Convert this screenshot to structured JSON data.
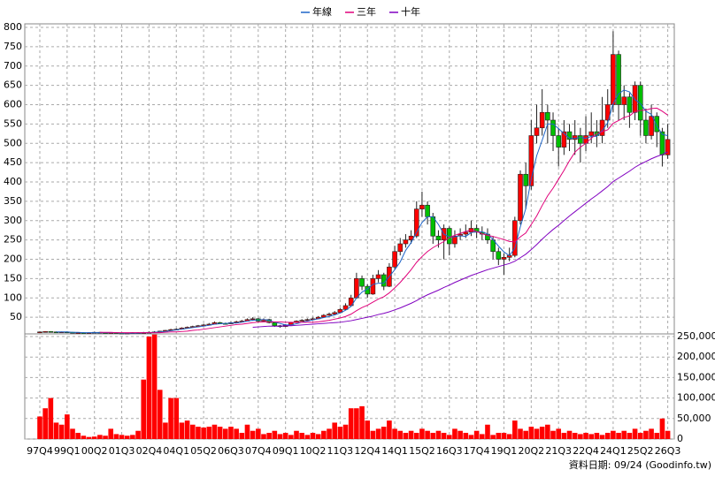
{
  "footer": "資料日期: 09/24 (Goodinfo.tw)",
  "chart_data": [
    {
      "type": "candlestick",
      "categories": [
        "97Q4",
        null,
        null,
        null,
        null,
        "99Q1",
        null,
        null,
        null,
        null,
        "00Q2",
        null,
        null,
        null,
        null,
        "01Q3",
        null,
        null,
        null,
        null,
        "02Q4",
        null,
        null,
        null,
        null,
        "04Q1",
        null,
        null,
        null,
        null,
        "05Q2",
        null,
        null,
        null,
        null,
        "06Q3",
        null,
        null,
        null,
        null,
        "07Q4",
        null,
        null,
        null,
        null,
        "09Q1",
        null,
        null,
        null,
        null,
        "10Q2",
        null,
        null,
        null,
        null,
        "11Q3",
        null,
        null,
        null,
        null,
        "12Q4",
        null,
        null,
        null,
        null,
        "14Q1",
        null,
        null,
        null,
        null,
        "15Q2",
        null,
        null,
        null,
        null,
        "16Q3",
        null,
        null,
        null,
        null,
        "17Q4",
        null,
        null,
        null,
        null,
        "19Q1",
        null,
        null,
        null,
        null,
        "20Q2",
        null,
        null,
        null,
        null,
        "21Q3",
        null,
        null,
        null,
        null,
        "22Q4",
        null,
        null,
        null,
        null,
        "24Q1",
        null,
        null,
        null,
        null,
        "25Q2",
        null,
        null,
        null,
        null,
        "26Q3"
      ],
      "open": [
        12,
        12,
        13,
        12,
        11,
        12,
        11,
        10,
        10,
        9,
        10,
        11,
        10,
        9,
        10,
        9,
        8,
        9,
        10,
        9,
        10,
        11,
        12,
        14,
        16,
        18,
        19,
        22,
        24,
        26,
        28,
        30,
        32,
        36,
        34,
        33,
        36,
        38,
        40,
        44,
        46,
        40,
        44,
        36,
        28,
        26,
        30,
        36,
        40,
        42,
        44,
        46,
        50,
        55,
        58,
        62,
        70,
        80,
        100,
        150,
        130,
        110,
        150,
        160,
        130,
        180,
        220,
        240,
        250,
        260,
        330,
        340,
        310,
        260,
        250,
        280,
        240,
        260,
        265,
        270,
        280,
        270,
        265,
        250,
        220,
        200,
        205,
        210,
        300,
        420,
        390,
        520,
        540,
        580,
        560,
        520,
        490,
        530,
        510,
        520,
        500,
        520,
        530,
        520,
        560,
        600,
        730,
        600,
        620,
        580,
        650,
        560,
        520,
        570,
        530,
        470
      ],
      "high": [
        13,
        14,
        14,
        13,
        13,
        13,
        12,
        11,
        11,
        11,
        12,
        12,
        11,
        11,
        11,
        10,
        10,
        11,
        11,
        12,
        13,
        14,
        15,
        17,
        20,
        21,
        24,
        26,
        28,
        30,
        33,
        35,
        39,
        38,
        36,
        38,
        41,
        43,
        47,
        50,
        48,
        47,
        46,
        38,
        30,
        32,
        38,
        42,
        45,
        47,
        49,
        53,
        58,
        62,
        66,
        74,
        86,
        108,
        165,
        158,
        135,
        160,
        172,
        165,
        190,
        235,
        255,
        265,
        275,
        350,
        375,
        350,
        320,
        275,
        290,
        285,
        275,
        280,
        290,
        300,
        290,
        285,
        280,
        260,
        230,
        215,
        230,
        310,
        430,
        450,
        560,
        600,
        640,
        600,
        580,
        540,
        560,
        550,
        560,
        540,
        570,
        580,
        560,
        620,
        640,
        790,
        740,
        650,
        630,
        660,
        660,
        590,
        600,
        580,
        540,
        550
      ],
      "low": [
        11,
        11,
        11,
        10,
        10,
        10,
        9,
        9,
        8,
        8,
        9,
        9,
        8,
        8,
        8,
        7,
        7,
        8,
        8,
        8,
        9,
        10,
        11,
        13,
        15,
        17,
        18,
        21,
        23,
        25,
        27,
        29,
        31,
        32,
        31,
        32,
        35,
        37,
        39,
        42,
        38,
        38,
        34,
        25,
        23,
        25,
        29,
        35,
        39,
        41,
        42,
        45,
        49,
        54,
        56,
        60,
        68,
        78,
        98,
        120,
        100,
        108,
        140,
        120,
        128,
        175,
        210,
        230,
        240,
        255,
        310,
        290,
        240,
        230,
        200,
        210,
        230,
        250,
        255,
        260,
        255,
        250,
        240,
        200,
        185,
        160,
        195,
        205,
        290,
        330,
        380,
        500,
        520,
        500,
        480,
        440,
        470,
        480,
        470,
        450,
        480,
        500,
        490,
        500,
        540,
        580,
        560,
        560,
        540,
        560,
        520,
        500,
        510,
        490,
        440,
        460
      ],
      "close": [
        12,
        13,
        12,
        11,
        12,
        11,
        10,
        10,
        9,
        10,
        11,
        10,
        9,
        10,
        9,
        8,
        9,
        10,
        9,
        10,
        11,
        12,
        14,
        16,
        18,
        19,
        22,
        24,
        26,
        28,
        30,
        32,
        36,
        34,
        33,
        36,
        38,
        40,
        44,
        46,
        40,
        44,
        36,
        28,
        26,
        30,
        36,
        40,
        42,
        44,
        46,
        50,
        55,
        58,
        62,
        70,
        80,
        100,
        150,
        130,
        110,
        150,
        160,
        130,
        180,
        220,
        240,
        250,
        260,
        330,
        340,
        310,
        260,
        250,
        280,
        240,
        260,
        265,
        270,
        280,
        270,
        265,
        250,
        220,
        200,
        205,
        210,
        300,
        420,
        390,
        520,
        540,
        580,
        560,
        520,
        490,
        530,
        510,
        520,
        500,
        520,
        530,
        520,
        560,
        600,
        730,
        600,
        620,
        580,
        650,
        560,
        520,
        570,
        530,
        470,
        510
      ],
      "up_color": "#ff0000",
      "down_color": "#00c000",
      "series": [
        {
          "name": "年線",
          "color": "#1e64c8",
          "values": [
            null,
            null,
            null,
            12,
            12,
            12,
            11,
            11,
            10,
            10,
            10,
            10,
            10,
            10,
            10,
            9,
            9,
            9,
            9,
            10,
            10,
            11,
            12,
            13,
            15,
            17,
            19,
            21,
            23,
            25,
            27,
            29,
            32,
            33,
            34,
            35,
            35,
            37,
            40,
            42,
            43,
            44,
            42,
            37,
            34,
            30,
            30,
            33,
            37,
            40,
            43,
            46,
            49,
            52,
            56,
            61,
            68,
            78,
            100,
            115,
            123,
            135,
            138,
            138,
            155,
            173,
            193,
            223,
            243,
            270,
            295,
            310,
            310,
            290,
            265,
            258,
            258,
            261,
            259,
            269,
            271,
            271,
            266,
            251,
            234,
            219,
            209,
            229,
            284,
            331,
            408,
            468,
            508,
            550,
            550,
            538,
            525,
            513,
            513,
            515,
            513,
            518,
            518,
            533,
            553,
            603,
            628,
            638,
            633,
            613,
            603,
            583,
            575,
            545,
            523,
            520
          ]
        },
        {
          "name": "三年",
          "color": "#e0007a",
          "values": [
            null,
            null,
            null,
            null,
            null,
            null,
            null,
            null,
            null,
            null,
            null,
            11,
            11,
            11,
            10,
            10,
            10,
            10,
            10,
            10,
            10,
            10,
            10,
            11,
            12,
            12,
            13,
            14,
            16,
            17,
            19,
            21,
            23,
            25,
            27,
            29,
            31,
            32,
            34,
            36,
            37,
            38,
            38,
            38,
            38,
            37,
            37,
            37,
            37,
            37,
            37,
            38,
            40,
            42,
            45,
            48,
            52,
            58,
            67,
            75,
            81,
            89,
            97,
            103,
            113,
            126,
            140,
            156,
            173,
            192,
            207,
            220,
            230,
            238,
            246,
            256,
            262,
            267,
            272,
            275,
            272,
            266,
            262,
            259,
            255,
            251,
            246,
            245,
            258,
            268,
            290,
            312,
            339,
            364,
            384,
            407,
            430,
            455,
            477,
            490,
            500,
            513,
            525,
            530,
            535,
            552,
            559,
            567,
            571,
            582,
            585,
            586,
            590,
            591,
            583,
            573
          ]
        },
        {
          "name": "十年",
          "color": "#8000c0",
          "values": [
            null,
            null,
            null,
            null,
            null,
            null,
            null,
            null,
            null,
            null,
            null,
            null,
            null,
            null,
            null,
            null,
            null,
            null,
            null,
            null,
            null,
            null,
            null,
            null,
            null,
            null,
            null,
            null,
            null,
            null,
            null,
            null,
            null,
            null,
            null,
            null,
            null,
            null,
            null,
            24,
            25,
            26,
            27,
            27,
            27,
            28,
            28,
            29,
            30,
            31,
            32,
            33,
            34,
            35,
            36,
            37,
            39,
            41,
            44,
            47,
            50,
            53,
            57,
            60,
            64,
            69,
            74,
            80,
            86,
            93,
            101,
            108,
            114,
            120,
            127,
            133,
            140,
            146,
            152,
            158,
            163,
            168,
            173,
            177,
            181,
            185,
            189,
            195,
            204,
            213,
            225,
            238,
            252,
            265,
            277,
            288,
            300,
            312,
            323,
            334,
            345,
            356,
            366,
            377,
            388,
            401,
            410,
            419,
            428,
            438,
            446,
            453,
            460,
            466,
            471,
            478
          ]
        }
      ],
      "ylim": [
        0,
        800
      ],
      "yticks": [
        50,
        100,
        150,
        200,
        250,
        300,
        350,
        400,
        450,
        500,
        550,
        600,
        650,
        700,
        750,
        800
      ],
      "grid": true
    },
    {
      "type": "bar",
      "color": "#ff0000",
      "values": [
        55000,
        75000,
        100000,
        40000,
        35000,
        60000,
        25000,
        15000,
        8000,
        5000,
        6000,
        10000,
        8000,
        25000,
        12000,
        10000,
        8000,
        10000,
        20000,
        145000,
        250000,
        255000,
        120000,
        40000,
        100000,
        100000,
        40000,
        45000,
        35000,
        30000,
        28000,
        30000,
        35000,
        30000,
        25000,
        30000,
        25000,
        15000,
        35000,
        20000,
        25000,
        12000,
        15000,
        20000,
        12000,
        15000,
        10000,
        20000,
        15000,
        10000,
        15000,
        12000,
        20000,
        25000,
        40000,
        30000,
        35000,
        75000,
        75000,
        80000,
        45000,
        20000,
        25000,
        30000,
        45000,
        25000,
        20000,
        15000,
        20000,
        15000,
        25000,
        20000,
        15000,
        20000,
        15000,
        10000,
        25000,
        20000,
        15000,
        10000,
        20000,
        12000,
        35000,
        10000,
        15000,
        15000,
        12000,
        45000,
        25000,
        20000,
        30000,
        25000,
        30000,
        35000,
        20000,
        25000,
        15000,
        20000,
        15000,
        12000,
        15000,
        12000,
        15000,
        10000,
        15000,
        20000,
        15000,
        20000,
        15000,
        25000,
        15000,
        20000,
        25000,
        15000,
        50000,
        20000
      ],
      "ylim": [
        0,
        250000
      ],
      "yticks": [
        0,
        {
          "value": 50000,
          "label": "50,000"
        },
        {
          "value": 100000,
          "label": "100,000"
        },
        {
          "value": 150000,
          "label": "150,000"
        },
        {
          "value": 200000,
          "label": "200,000"
        },
        {
          "value": 250000,
          "label": "250,000"
        }
      ],
      "grid": true
    }
  ]
}
